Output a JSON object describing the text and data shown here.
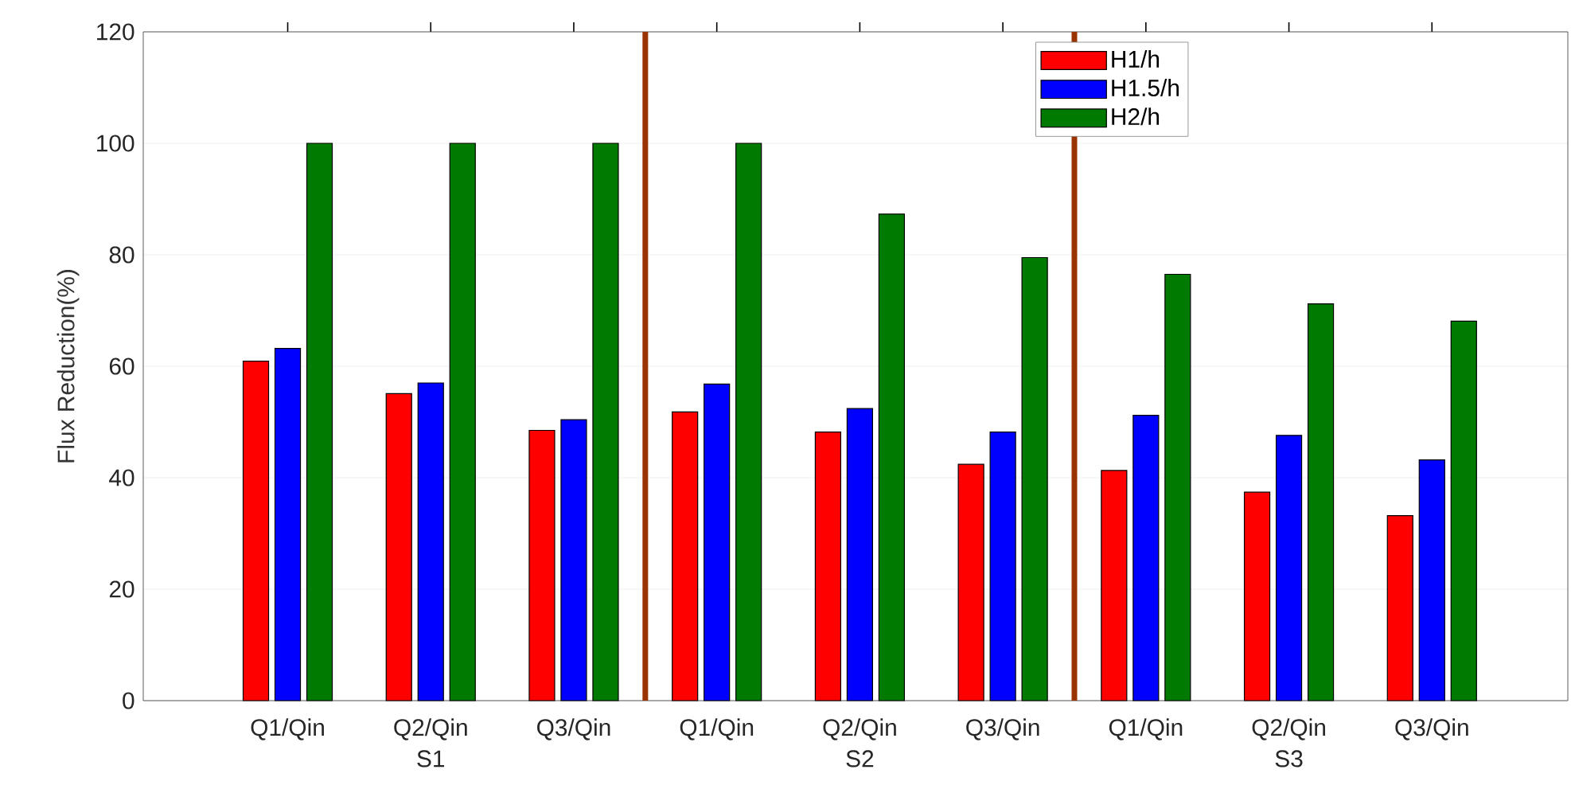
{
  "chart_data": {
    "type": "bar",
    "ylabel": "Flux Reduction(%)",
    "categories": [
      "Q1/Qin",
      "Q2/Qin",
      "Q3/Qin",
      "Q1/Qin",
      "Q2/Qin",
      "Q3/Qin",
      "Q1/Qin",
      "Q2/Qin",
      "Q3/Qin"
    ],
    "series": [
      {
        "name": "H1/h",
        "color": "#ff0000",
        "values": [
          60.9,
          55.1,
          48.5,
          51.8,
          48.2,
          42.4,
          41.3,
          37.4,
          33.2
        ]
      },
      {
        "name": "H1.5/h",
        "color": "#0000ff",
        "values": [
          63.2,
          57,
          50.4,
          56.8,
          52.4,
          48.2,
          51.2,
          47.6,
          43.2
        ]
      },
      {
        "name": "H2/h",
        "color": "#007a00",
        "values": [
          100,
          100,
          100,
          100,
          87.3,
          79.5,
          76.5,
          71.2,
          68.1
        ]
      }
    ],
    "ylim": [
      0,
      120
    ],
    "yticks": [
      0,
      20,
      40,
      60,
      80,
      100,
      120
    ],
    "grid": "y",
    "legend": "top right",
    "annotations": [
      "S1",
      "S2",
      "S3"
    ]
  }
}
